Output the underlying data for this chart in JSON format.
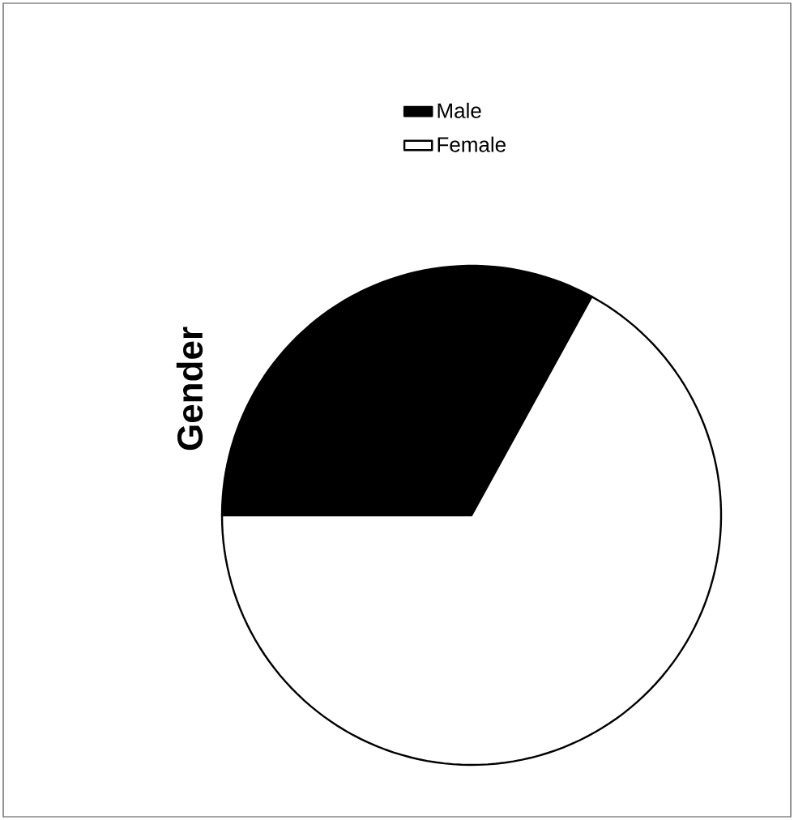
{
  "chart_data": {
    "type": "pie",
    "title": "Gender",
    "categories": [
      "Male",
      "Female"
    ],
    "values": [
      33,
      67
    ],
    "colors": [
      "#000000",
      "#ffffff"
    ],
    "legend": "top right"
  }
}
